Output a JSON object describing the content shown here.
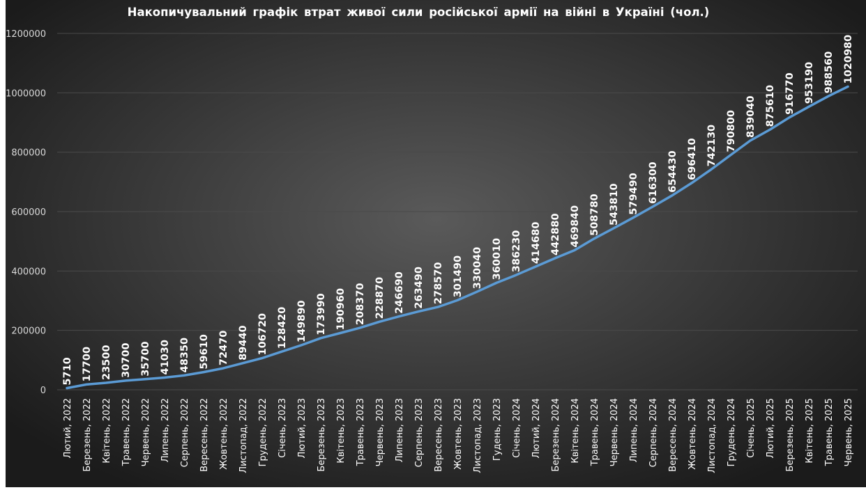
{
  "chart_data": {
    "type": "line",
    "title": "Накопичувальний графік втрат живої сили російської армії на війні в Україні (чол.)",
    "xlabel": "",
    "ylabel": "",
    "ylim": [
      0,
      1200000
    ],
    "yticks": [
      0,
      200000,
      400000,
      600000,
      800000,
      1000000,
      1200000
    ],
    "grid": true,
    "legend": "none",
    "colors": {
      "background_edge": "#1b1b1b",
      "background_center": "#5a5a5a",
      "line": "#5b9bd5",
      "text": "#ffffff",
      "axis_text": "#d9d9d9",
      "grid": "#4a4a4a"
    },
    "categories": [
      "Лютий, 2022",
      "Березень, 2022",
      "Квітень, 2022",
      "Травень, 2022",
      "Червень, 2022",
      "Липень, 2022",
      "Серпень, 2022",
      "Вересень, 2022",
      "Жовтень, 2022",
      "Листопад, 2022",
      "Грудень, 2022",
      "Січень, 2023",
      "Лютий, 2023",
      "Березень, 2023",
      "Квітень, 2023",
      "Травень, 2023",
      "Червень, 2023",
      "Липень, 2023",
      "Серпень, 2023",
      "Вересень, 2023",
      "Жовтень, 2023",
      "Листопад, 2023",
      "Гудень, 2023",
      "Січень, 2024",
      "Лютий, 2024",
      "Березень, 2024",
      "Квітень, 2024",
      "Травень, 2024",
      "Червень, 2024",
      "Липень, 2024",
      "Серпень, 2024",
      "Вересень, 2024",
      "Жовтень, 2024",
      "Листопад, 2024",
      "Грудень, 2024",
      "Січень, 2025",
      "Лютий, 2025",
      "Березень, 2025",
      "Квітень, 2025",
      "Травень, 2025",
      "Червень, 2025"
    ],
    "series": [
      {
        "values": [
          5710,
          17700,
          23500,
          30700,
          35700,
          41030,
          48350,
          59610,
          72470,
          89440,
          106720,
          128420,
          149890,
          173990,
          190960,
          208370,
          228870,
          246690,
          263490,
          278570,
          301490,
          330040,
          360010,
          386230,
          414680,
          442880,
          469840,
          508780,
          543810,
          579490,
          616300,
          654430,
          696410,
          742130,
          790800,
          839040,
          875610,
          916770,
          953190,
          988560,
          1020980
        ]
      }
    ]
  }
}
